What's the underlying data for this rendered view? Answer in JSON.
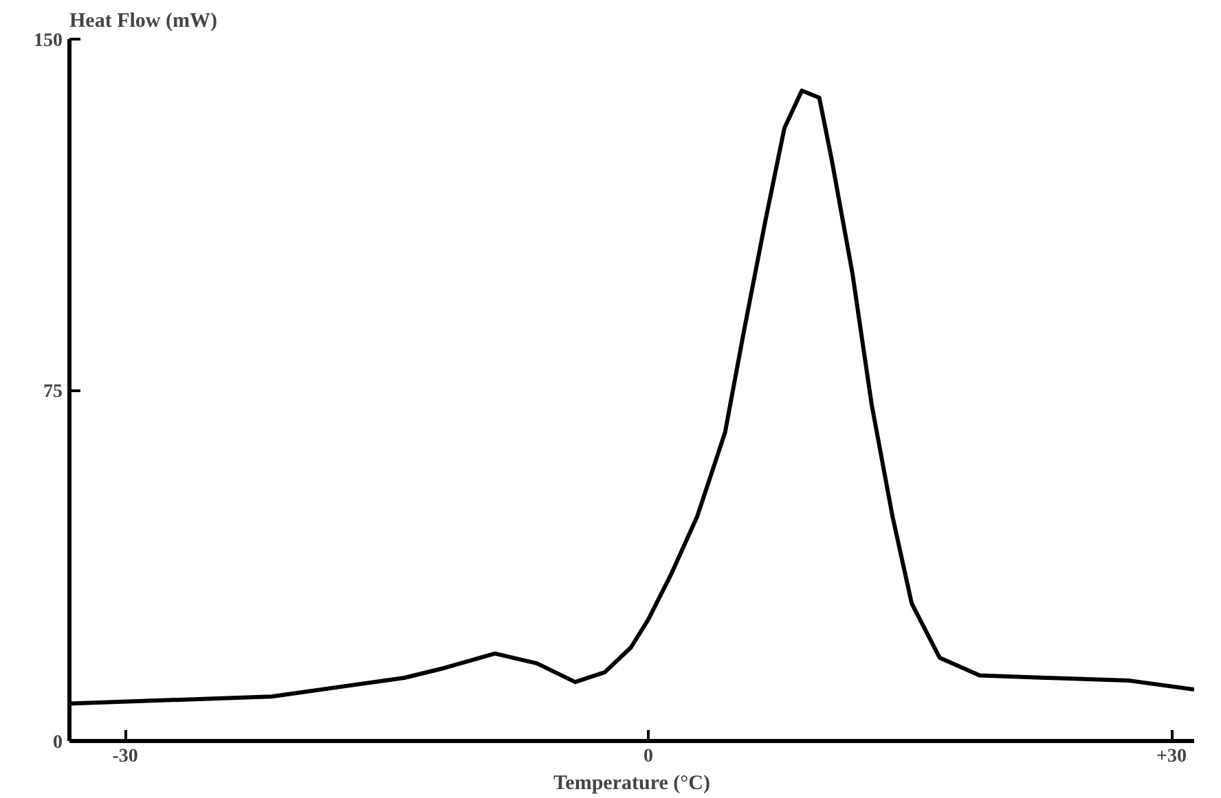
{
  "chart_data": {
    "type": "line",
    "xlabel": "Temperature (°C)",
    "ylabel": "Heat Flow (mW)",
    "xlim": [
      -33.2,
      31.3
    ],
    "ylim": [
      0,
      150
    ],
    "xticks": [
      -30,
      0,
      {
        "value": 30,
        "label": "+30"
      }
    ],
    "yticks": [
      0,
      75,
      150
    ],
    "grid": false,
    "marker": "none",
    "line_style": "solid",
    "series": [
      {
        "color": "#000000",
        "x": [
          -33.2,
          -21.6,
          -14,
          -11.7,
          -8.8,
          -6.4,
          -4.2,
          -2.5,
          -1,
          0,
          1.3,
          2.8,
          4.4,
          5.5,
          6.7,
          7.8,
          8.8,
          9.8,
          10.5,
          11.7,
          12.8,
          14,
          15.1,
          16.7,
          19,
          22.8,
          27.6,
          31.3
        ],
        "values": [
          8,
          9.5,
          13.5,
          15.6,
          18.7,
          16.6,
          12.6,
          14.7,
          20,
          26,
          35.6,
          48,
          66,
          88,
          111,
          131,
          139,
          137.5,
          124.5,
          100,
          72,
          48,
          29.4,
          17.8,
          14,
          13.5,
          12.9,
          11
        ]
      }
    ]
  }
}
